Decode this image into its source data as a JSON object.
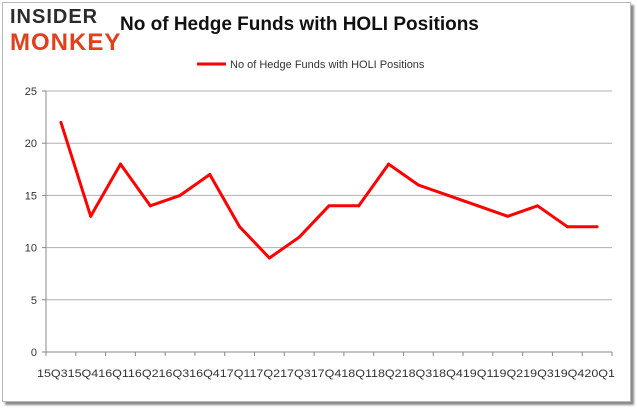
{
  "logo": {
    "line1": "INSIDER",
    "line2": "MONKEY"
  },
  "chart_data": {
    "type": "line",
    "title": "No of Hedge Funds with HOLI Positions",
    "xlabel": "",
    "ylabel": "",
    "categories": [
      "15Q3",
      "15Q4",
      "16Q1",
      "16Q2",
      "16Q3",
      "16Q4",
      "17Q1",
      "17Q2",
      "17Q3",
      "17Q4",
      "18Q1",
      "18Q2",
      "18Q3",
      "18Q4",
      "19Q1",
      "19Q2",
      "19Q3",
      "19Q4",
      "20Q1"
    ],
    "x_tick_text": "15Q315Q416Q116Q216Q316Q417Q117Q217Q317Q418Q118Q218Q318Q419Q119Q219Q319Q420Q1",
    "series": [
      {
        "name": "No of Hedge Funds with HOLI Positions",
        "values": [
          22,
          13,
          18,
          14,
          15,
          17,
          12,
          9,
          11,
          14,
          14,
          18,
          16,
          15,
          14,
          13,
          14,
          12,
          12
        ],
        "color": "#ff0000"
      }
    ],
    "ylim": [
      0,
      25
    ],
    "yticks": [
      0,
      5,
      10,
      15,
      20,
      25
    ],
    "grid": true,
    "legend": "top-center"
  }
}
